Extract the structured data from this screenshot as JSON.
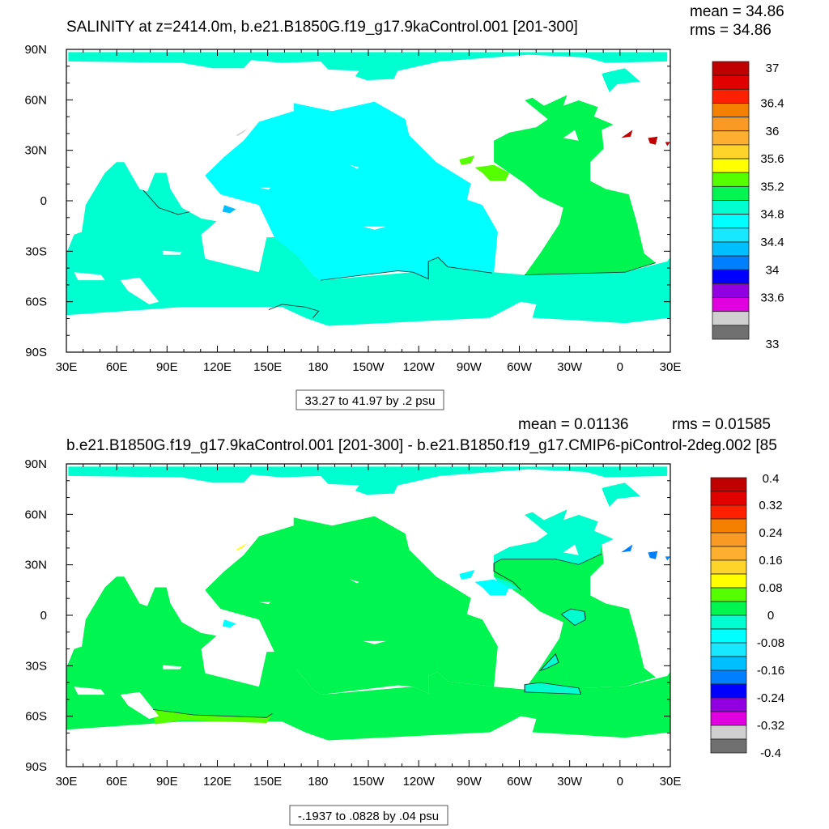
{
  "chart_data": [
    {
      "type": "heatmap",
      "subtype": "global-map",
      "title": "SALINITY at z=2414.0m, b.e21.B1850G.f19_g17.9kaControl.001 [201-300]",
      "stats": {
        "mean": "mean = 34.86",
        "rms": "rms = 34.86"
      },
      "x_tick_labels": [
        "30E",
        "60E",
        "90E",
        "120E",
        "150E",
        "180",
        "150W",
        "120W",
        "90W",
        "60W",
        "30W",
        "0",
        "30E"
      ],
      "y_tick_labels": [
        "90N",
        "60N",
        "30N",
        "0",
        "30S",
        "60S",
        "90S"
      ],
      "xlim": [
        30,
        390
      ],
      "ylim": [
        -90,
        90
      ],
      "info_box": "33.27 to 41.97 by .2 psu",
      "units": "psu",
      "colorbar": {
        "levels_top_to_bottom": [
          37,
          36.8,
          36.6,
          36.4,
          36.2,
          36,
          35.8,
          35.6,
          35.4,
          35.2,
          35,
          34.8,
          34.6,
          34.4,
          34.2,
          34,
          33.8,
          33.6,
          33.4,
          33.2,
          33
        ],
        "labels": [
          "37",
          "36.4",
          "36",
          "35.6",
          "35.2",
          "34.8",
          "34.4",
          "34",
          "33.6",
          "33"
        ],
        "colors_top_to_bottom": [
          "#c00000",
          "#e00000",
          "#ff2000",
          "#f58000",
          "#f99a25",
          "#fdb030",
          "#ffd42a",
          "#ffff00",
          "#55ff00",
          "#00f550",
          "#00ffd0",
          "#00ffff",
          "#18e8ff",
          "#00bfff",
          "#0080ff",
          "#0000ff",
          "#9000e0",
          "#e000e0",
          "#d0d0d0",
          "#707070"
        ]
      },
      "regions": {
        "pacific": "34.8-35.0",
        "indian_southern": "35.0-35.2",
        "atlantic": "35.2-35.4",
        "caribbean": "35.4-35.6",
        "mediterranean": "36.8-37"
      }
    },
    {
      "type": "heatmap",
      "subtype": "global-map-difference",
      "title": "b.e21.B1850G.f19_g17.9kaControl.001 [201-300] - b.e21.B1850.f19_g17.CMIP6-piControl-2deg.002 [85",
      "stats": {
        "mean": "mean = 0.01136",
        "rms": "rms = 0.01585"
      },
      "x_tick_labels": [
        "30E",
        "60E",
        "90E",
        "120E",
        "150E",
        "180",
        "150W",
        "120W",
        "90W",
        "60W",
        "30W",
        "0",
        "30E"
      ],
      "y_tick_labels": [
        "90N",
        "60N",
        "30N",
        "0",
        "30S",
        "60S",
        "90S"
      ],
      "xlim": [
        30,
        390
      ],
      "ylim": [
        -90,
        90
      ],
      "info_box": "-.1937 to .0828 by .04 psu",
      "units": "psu",
      "colorbar": {
        "levels_top_to_bottom": [
          0.4,
          0.36,
          0.32,
          0.28,
          0.24,
          0.2,
          0.16,
          0.12,
          0.08,
          0.04,
          0,
          -0.04,
          -0.08,
          -0.12,
          -0.16,
          -0.2,
          -0.24,
          -0.28,
          -0.32,
          -0.36,
          -0.4
        ],
        "labels": [
          "0.4",
          "0.32",
          "0.24",
          "0.16",
          "0.08",
          "0",
          "-0.08",
          "-0.16",
          "-0.24",
          "-0.32",
          "-0.4"
        ],
        "colors_top_to_bottom": [
          "#c00000",
          "#e00000",
          "#ff2000",
          "#f58000",
          "#f99a25",
          "#fdb030",
          "#ffd42a",
          "#ffff00",
          "#55ff00",
          "#00f550",
          "#00ffd0",
          "#00ffff",
          "#18e8ff",
          "#00bfff",
          "#0080ff",
          "#0000ff",
          "#9000e0",
          "#e000e0",
          "#d0d0d0",
          "#707070"
        ]
      },
      "regions": {
        "most_ocean": "0 to 0.04",
        "north_atlantic_arctic": "-0.04 to 0",
        "southern_indian_patch": "0.04 to 0.08"
      }
    }
  ]
}
